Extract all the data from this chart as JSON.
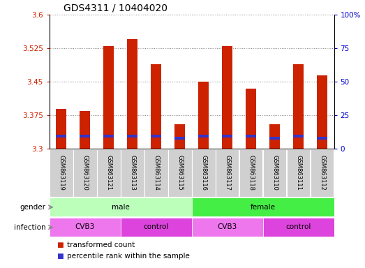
{
  "title": "GDS4311 / 10404020",
  "samples": [
    "GSM863119",
    "GSM863120",
    "GSM863121",
    "GSM863113",
    "GSM863114",
    "GSM863115",
    "GSM863116",
    "GSM863117",
    "GSM863118",
    "GSM863110",
    "GSM863111",
    "GSM863112"
  ],
  "transformed_counts": [
    3.39,
    3.385,
    3.53,
    3.545,
    3.49,
    3.355,
    3.45,
    3.53,
    3.435,
    3.355,
    3.49,
    3.465
  ],
  "percentile_values": [
    3.325,
    3.325,
    3.325,
    3.325,
    3.325,
    3.32,
    3.325,
    3.325,
    3.325,
    3.32,
    3.325,
    3.32
  ],
  "ylim_left": [
    3.3,
    3.6
  ],
  "yticks_left": [
    3.3,
    3.375,
    3.45,
    3.525,
    3.6
  ],
  "ylim_right": [
    0,
    100
  ],
  "yticks_right": [
    0,
    25,
    50,
    75,
    100
  ],
  "bar_color": "#cc2200",
  "percentile_color": "#3333cc",
  "bar_bottom": 3.3,
  "gender_groups": [
    {
      "label": "male",
      "start": 0,
      "end": 6,
      "color": "#bbffbb"
    },
    {
      "label": "female",
      "start": 6,
      "end": 12,
      "color": "#44ee44"
    }
  ],
  "infection_groups": [
    {
      "label": "CVB3",
      "start": 0,
      "end": 3,
      "color": "#ee77ee"
    },
    {
      "label": "control",
      "start": 3,
      "end": 6,
      "color": "#dd44dd"
    },
    {
      "label": "CVB3",
      "start": 6,
      "end": 9,
      "color": "#ee77ee"
    },
    {
      "label": "control",
      "start": 9,
      "end": 12,
      "color": "#dd44dd"
    }
  ],
  "legend_items": [
    {
      "label": "transformed count",
      "color": "#cc2200"
    },
    {
      "label": "percentile rank within the sample",
      "color": "#3333cc"
    }
  ],
  "left_tick_color": "#cc2200",
  "right_tick_color": "#0000cc",
  "title_fontsize": 10,
  "tick_fontsize": 7.5,
  "sample_fontsize": 6,
  "label_fontsize": 7.5,
  "legend_fontsize": 7.5,
  "bg_color": "#ffffff",
  "sample_bg_color": "#d0d0d0",
  "bar_width": 0.45
}
